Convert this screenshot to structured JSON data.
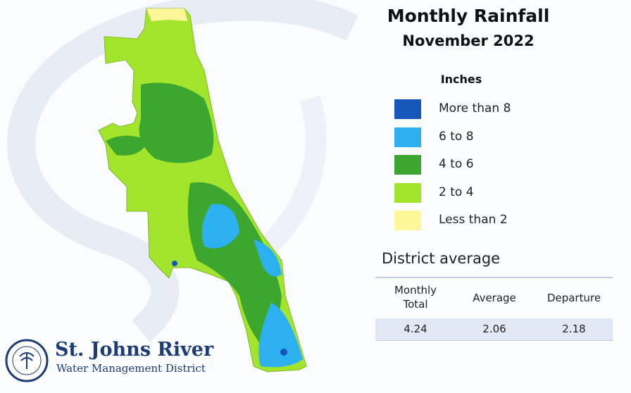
{
  "title": "Monthly Rainfall",
  "subtitle": "November 2022",
  "legend": {
    "title": "Inches",
    "items": [
      {
        "label": "More than 8",
        "color": "#1656b8"
      },
      {
        "label": "6 to 8",
        "color": "#2cb0f0"
      },
      {
        "label": "4 to 6",
        "color": "#3ca62e"
      },
      {
        "label": "2 to 4",
        "color": "#a3e42c"
      },
      {
        "label": "Less than 2",
        "color": "#fdf79a"
      }
    ]
  },
  "district_average": {
    "heading": "District average",
    "table": {
      "headers": [
        "Monthly Total",
        "Average",
        "Departure"
      ],
      "rows": [
        [
          4.24,
          2.06,
          2.18
        ]
      ]
    }
  },
  "logo": {
    "name": "St. Johns River",
    "subtitle": "Water Management District"
  }
}
